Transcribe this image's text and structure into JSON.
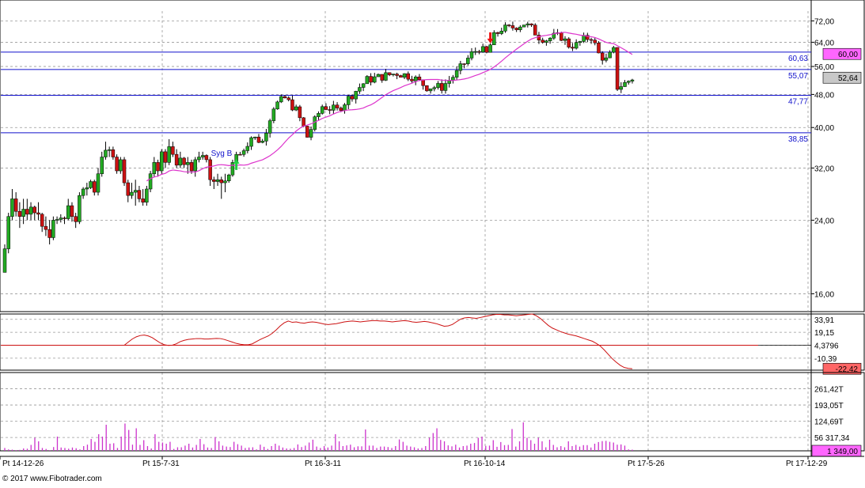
{
  "app": {
    "copyright": "© 2017 www.Fibotrader.com"
  },
  "colors": {
    "up_candle": "#22aa22",
    "down_candle": "#cc1111",
    "wick": "#000000",
    "moving_average": "#dd33cc",
    "horizontal_levels": "#1111cc",
    "oscillator": "#cc1111",
    "oscillator_zero": "#cc1111",
    "volume": "#cc33cc",
    "grid": "#999999",
    "last_price_box": "#c8c8c8",
    "level_box": "#ff66ff",
    "oscillator_box": "#ff6666"
  },
  "chart_data": [
    {
      "type": "candlestick",
      "panel": "price",
      "scale": "log",
      "ylim": [
        14.5,
        76
      ],
      "grid": true,
      "x_ticks": [
        "Pt 14-12-26",
        "Pt 15-7-31",
        "Pt 16-3-11",
        "Pt 16-10-14",
        "Pt 17-5-26",
        "Pt 17-12-29"
      ],
      "y_ticks": [
        "72,00",
        "64,00",
        "56,00",
        "48,00",
        "40,00",
        "32,00",
        "24,00",
        "16,00"
      ],
      "horizontal_levels": [
        {
          "value": 60.63,
          "label": "60,63"
        },
        {
          "value": 55.07,
          "label": "55,07"
        },
        {
          "value": 47.77,
          "label": "47,77"
        },
        {
          "value": 38.85,
          "label": "38,85"
        }
      ],
      "price_boxes": [
        {
          "value": 60.0,
          "label": "60,00"
        },
        {
          "value": 52.64,
          "label": "52,64"
        }
      ],
      "annotations": [
        {
          "text": "Syg B",
          "type": "buy",
          "bar": 62
        },
        {
          "text": "",
          "type": "sell",
          "bar": 130
        }
      ],
      "moving_average_start": 18,
      "candles": [
        [
          18.0,
          21.0,
          18.0,
          20.5
        ],
        [
          20.5,
          25.0,
          20.0,
          24.5
        ],
        [
          24.5,
          28.5,
          24.0,
          27.0
        ],
        [
          27.0,
          28.0,
          24.5,
          25.2
        ],
        [
          25.2,
          26.5,
          23.0,
          24.5
        ],
        [
          24.5,
          27.0,
          23.5,
          25.5
        ],
        [
          25.5,
          27.0,
          24.0,
          24.8
        ],
        [
          24.8,
          26.5,
          24.0,
          25.8
        ],
        [
          25.8,
          26.0,
          24.0,
          25.0
        ],
        [
          25.0,
          26.5,
          24.0,
          24.8
        ],
        [
          24.8,
          25.0,
          22.5,
          23.2
        ],
        [
          23.2,
          24.5,
          22.0,
          22.8
        ],
        [
          22.8,
          24.0,
          21.0,
          21.8
        ],
        [
          21.8,
          24.5,
          21.5,
          24.0
        ],
        [
          24.0,
          24.5,
          23.5,
          24.1
        ],
        [
          24.1,
          24.8,
          23.7,
          24.3
        ],
        [
          24.3,
          24.5,
          23.5,
          24.2
        ],
        [
          24.2,
          27.0,
          24.0,
          26.0
        ],
        [
          26.0,
          26.5,
          23.8,
          24.5
        ],
        [
          24.5,
          25.0,
          23.0,
          23.8
        ],
        [
          23.8,
          28.0,
          23.5,
          27.5
        ],
        [
          27.5,
          28.8,
          27.0,
          28.5
        ],
        [
          28.5,
          29.5,
          27.5,
          28.7
        ],
        [
          28.7,
          30.0,
          28.5,
          29.7
        ],
        [
          29.7,
          30.0,
          27.5,
          28.0
        ],
        [
          28.0,
          32.0,
          27.5,
          31.0
        ],
        [
          31.0,
          35.0,
          30.5,
          34.0
        ],
        [
          34.0,
          37.0,
          33.5,
          35.3
        ],
        [
          35.3,
          36.0,
          34.0,
          35.4
        ],
        [
          35.4,
          36.0,
          33.5,
          34.0
        ],
        [
          34.0,
          34.5,
          31.0,
          31.5
        ],
        [
          31.5,
          34.0,
          31.0,
          33.5
        ],
        [
          33.5,
          34.0,
          29.0,
          29.5
        ],
        [
          29.5,
          30.0,
          26.5,
          27.5
        ],
        [
          27.5,
          29.5,
          27.0,
          28.0
        ],
        [
          28.0,
          30.0,
          26.0,
          28.3
        ],
        [
          28.3,
          29.0,
          26.5,
          27.0
        ],
        [
          27.0,
          28.5,
          26.0,
          26.5
        ],
        [
          26.5,
          29.0,
          26.0,
          28.5
        ],
        [
          28.5,
          31.5,
          28.0,
          31.0
        ],
        [
          31.0,
          34.0,
          30.5,
          33.0
        ],
        [
          33.0,
          33.5,
          30.5,
          31.5
        ],
        [
          31.5,
          35.5,
          31.0,
          35.0
        ],
        [
          35.0,
          35.5,
          32.0,
          33.0
        ],
        [
          33.0,
          37.5,
          32.5,
          36.0
        ],
        [
          36.0,
          37.0,
          34.0,
          34.5
        ],
        [
          34.5,
          35.5,
          32.0,
          32.5
        ],
        [
          32.5,
          35.0,
          32.0,
          33.8
        ],
        [
          33.8,
          34.0,
          32.0,
          32.6
        ],
        [
          32.6,
          34.0,
          31.0,
          33.0
        ],
        [
          33.0,
          33.5,
          31.0,
          31.5
        ],
        [
          31.5,
          34.0,
          30.5,
          33.5
        ],
        [
          33.5,
          35.0,
          33.0,
          34.0
        ],
        [
          34.0,
          35.0,
          33.5,
          34.3
        ],
        [
          34.3,
          34.5,
          33.0,
          33.5
        ],
        [
          33.5,
          34.0,
          29.0,
          30.0
        ],
        [
          30.0,
          30.5,
          28.5,
          29.7
        ],
        [
          29.7,
          31.0,
          29.0,
          30.0
        ],
        [
          30.0,
          30.5,
          27.0,
          29.5
        ],
        [
          29.5,
          31.0,
          28.0,
          29.8
        ],
        [
          29.8,
          31.0,
          29.5,
          30.8
        ],
        [
          30.8,
          33.5,
          30.5,
          33.0
        ],
        [
          33.0,
          35.0,
          32.5,
          34.5
        ]
      ]
    },
    {
      "type": "line",
      "panel": "oscillator",
      "ylim": [
        -24,
        40
      ],
      "grid": true,
      "y_ticks": [
        "33,91",
        "19,15",
        "4,3796",
        "-10,39"
      ],
      "zero_line": 4.3796,
      "value_box": "-22,42",
      "start_bar": 32,
      "points": [
        4.4,
        8.0,
        11.5,
        14.0,
        15.5,
        16.0,
        15.0,
        13.0,
        10.0,
        7.0,
        5.0,
        4.2,
        4.4,
        6.0,
        8.5,
        10.0,
        11.0,
        11.5,
        12.0,
        12.0,
        11.5,
        11.5,
        11.8,
        12.2,
        12.0,
        11.0,
        9.5,
        8.0,
        6.5,
        5.5,
        5.0,
        5.0,
        6.0,
        8.5,
        11.0,
        13.0,
        15.0,
        18.0,
        22.0,
        26.5,
        30.0,
        32.0,
        30.5,
        31.0,
        30.0,
        29.5,
        30.5,
        31.0,
        30.5,
        29.5,
        28.5,
        28.0,
        28.5,
        29.0,
        30.0,
        31.0,
        31.5,
        32.0,
        31.5,
        31.0,
        31.5,
        32.0,
        32.5,
        32.5,
        32.0,
        32.0,
        31.5,
        31.0,
        31.5,
        32.0,
        32.5,
        32.0,
        31.0,
        30.5,
        31.0,
        31.5,
        31.0,
        30.0,
        29.0,
        27.5,
        26.0,
        26.5,
        28.0,
        31.0,
        34.0,
        35.5,
        36.0,
        35.5,
        35.0,
        36.0,
        37.0,
        38.0,
        39.0,
        39.5,
        39.5,
        39.0,
        39.0,
        38.5,
        38.0,
        38.5,
        39.0,
        39.5,
        40.0,
        38.0,
        35.0,
        31.0,
        27.0,
        24.0,
        22.0,
        20.0,
        18.5,
        17.0,
        16.0,
        15.0,
        13.5,
        12.0,
        10.5,
        9.0,
        6.5,
        3.5,
        -1.0,
        -6.0,
        -11.0,
        -15.0,
        -18.5,
        -21.0,
        -22.0,
        -22.42
      ]
    },
    {
      "type": "bar",
      "panel": "volume",
      "ylim": [
        0,
        330
      ],
      "unit": "T",
      "grid": true,
      "y_ticks": [
        "261,42T",
        "193,05T",
        "124,69T",
        "56 317,34"
      ],
      "value_box": "1 349,00",
      "values": [
        12,
        6,
        5,
        3,
        4,
        10,
        9,
        25,
        55,
        40,
        12,
        8,
        3,
        16,
        60,
        14,
        12,
        9,
        14,
        11,
        6,
        20,
        26,
        50,
        38,
        70,
        60,
        110,
        30,
        32,
        12,
        60,
        115,
        88,
        26,
        95,
        25,
        45,
        20,
        10,
        70,
        38,
        35,
        30,
        38,
        8,
        15,
        15,
        22,
        30,
        14,
        25,
        50,
        28,
        14,
        12,
        58,
        40,
        22,
        18,
        16,
        38,
        28,
        22,
        12,
        14,
        15,
        6,
        26,
        17,
        8,
        20,
        30,
        22,
        14,
        10,
        9,
        12,
        27,
        16,
        22,
        35,
        47,
        18,
        12,
        20,
        14,
        22,
        70,
        40,
        20,
        23,
        26,
        15,
        19,
        19,
        90,
        22,
        22,
        12,
        18,
        18,
        16,
        12,
        20,
        48,
        38,
        22,
        18,
        15,
        10,
        12,
        20,
        55,
        75,
        95,
        46,
        40,
        23,
        19,
        26,
        14,
        20,
        22,
        30,
        33,
        55,
        60,
        21,
        22,
        45,
        17,
        37,
        24,
        25,
        92,
        18,
        40,
        120,
        55,
        45,
        30,
        55,
        40,
        15,
        47,
        25,
        15,
        20,
        15,
        40,
        20,
        25,
        18,
        24,
        24,
        14,
        30,
        37,
        41,
        42,
        38,
        35,
        26,
        27,
        22,
        6,
        5
      ]
    }
  ]
}
